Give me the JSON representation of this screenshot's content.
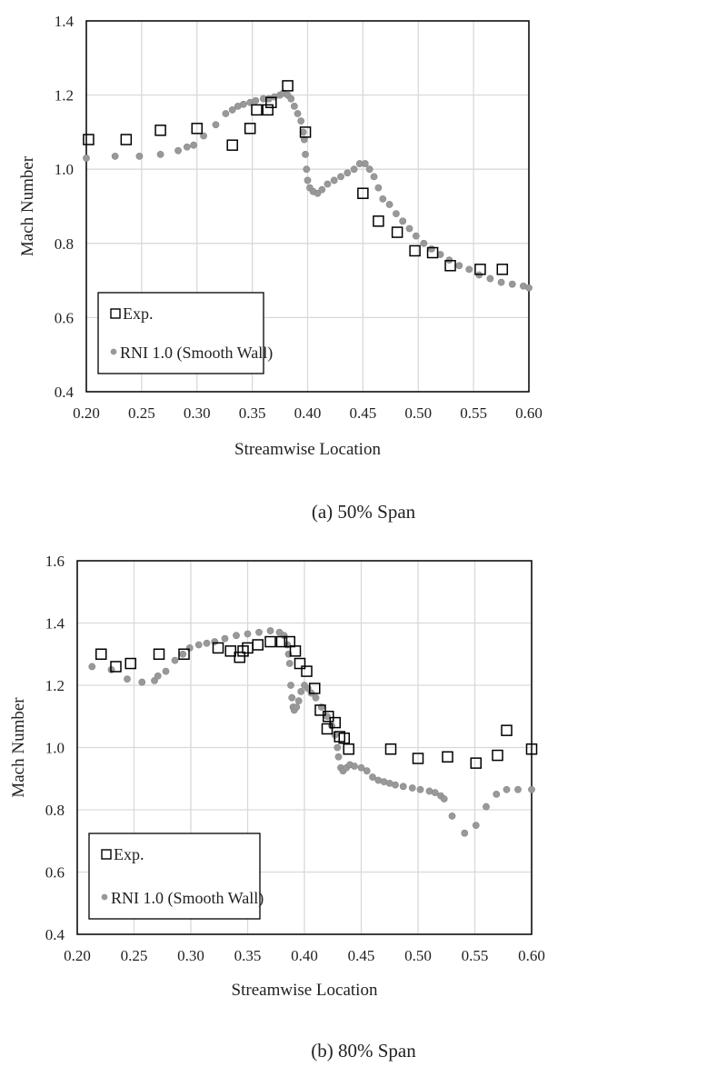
{
  "chart_data": [
    {
      "type": "scatter",
      "caption": "(a)  50%  Span",
      "xlabel": "Streamwise Location",
      "ylabel": "Mach Number",
      "xlim": [
        0.2,
        0.6
      ],
      "ylim": [
        0.4,
        1.4
      ],
      "xticks": [
        "0.20",
        "0.25",
        "0.30",
        "0.35",
        "0.40",
        "0.45",
        "0.50",
        "0.55",
        "0.60"
      ],
      "yticks": [
        "0.4",
        "0.6",
        "0.8",
        "1.0",
        "1.2",
        "1.4"
      ],
      "grid": true,
      "legend_position": "bottom-left",
      "series": [
        {
          "name": "Exp.",
          "marker": "open-square",
          "color": "#000000",
          "x": [
            0.202,
            0.236,
            0.267,
            0.3,
            0.332,
            0.348,
            0.354,
            0.364,
            0.367,
            0.382,
            0.398,
            0.45,
            0.464,
            0.481,
            0.497,
            0.513,
            0.529,
            0.556,
            0.576
          ],
          "y": [
            1.08,
            1.08,
            1.105,
            1.11,
            1.065,
            1.11,
            1.16,
            1.16,
            1.18,
            1.225,
            1.1,
            0.935,
            0.86,
            0.83,
            0.78,
            0.775,
            0.74,
            0.73,
            0.73
          ]
        },
        {
          "name": "RNI 1.0 (Smooth Wall)",
          "marker": "filled-circle",
          "color": "#999999",
          "x": [
            0.2,
            0.226,
            0.248,
            0.267,
            0.283,
            0.291,
            0.297,
            0.306,
            0.317,
            0.326,
            0.332,
            0.337,
            0.342,
            0.348,
            0.353,
            0.36,
            0.365,
            0.37,
            0.375,
            0.378,
            0.382,
            0.385,
            0.388,
            0.391,
            0.394,
            0.396,
            0.397,
            0.398,
            0.399,
            0.4,
            0.402,
            0.405,
            0.409,
            0.413,
            0.418,
            0.424,
            0.43,
            0.436,
            0.442,
            0.447,
            0.452,
            0.456,
            0.46,
            0.464,
            0.468,
            0.474,
            0.48,
            0.486,
            0.492,
            0.498,
            0.505,
            0.512,
            0.52,
            0.528,
            0.537,
            0.546,
            0.555,
            0.565,
            0.575,
            0.585,
            0.595,
            0.6
          ],
          "y": [
            1.03,
            1.035,
            1.035,
            1.04,
            1.05,
            1.06,
            1.065,
            1.09,
            1.12,
            1.15,
            1.16,
            1.17,
            1.175,
            1.18,
            1.185,
            1.19,
            1.19,
            1.195,
            1.2,
            1.205,
            1.2,
            1.19,
            1.17,
            1.15,
            1.13,
            1.1,
            1.08,
            1.04,
            1.0,
            0.97,
            0.95,
            0.94,
            0.935,
            0.945,
            0.96,
            0.97,
            0.98,
            0.99,
            1.0,
            1.015,
            1.015,
            1.0,
            0.98,
            0.95,
            0.92,
            0.905,
            0.88,
            0.86,
            0.84,
            0.82,
            0.8,
            0.785,
            0.77,
            0.755,
            0.74,
            0.73,
            0.715,
            0.705,
            0.695,
            0.69,
            0.685,
            0.68
          ]
        }
      ]
    },
    {
      "type": "scatter",
      "caption": "(b)  80%  Span",
      "xlabel": "Streamwise Location",
      "ylabel": "Mach Number",
      "xlim": [
        0.2,
        0.6
      ],
      "ylim": [
        0.4,
        1.6
      ],
      "xticks": [
        "0.20",
        "0.25",
        "0.30",
        "0.35",
        "0.40",
        "0.45",
        "0.50",
        "0.55",
        "0.60"
      ],
      "yticks": [
        "0.4",
        "0.6",
        "0.8",
        "1.0",
        "1.2",
        "1.4",
        "1.6"
      ],
      "grid": true,
      "legend_position": "bottom-left",
      "series": [
        {
          "name": "Exp.",
          "marker": "open-square",
          "color": "#000000",
          "x": [
            0.221,
            0.234,
            0.247,
            0.272,
            0.294,
            0.324,
            0.335,
            0.343,
            0.346,
            0.35,
            0.359,
            0.37,
            0.38,
            0.387,
            0.392,
            0.396,
            0.402,
            0.409,
            0.414,
            0.42,
            0.421,
            0.427,
            0.431,
            0.435,
            0.439,
            0.476,
            0.5,
            0.526,
            0.551,
            0.57,
            0.578,
            0.6
          ],
          "y": [
            1.3,
            1.26,
            1.27,
            1.3,
            1.3,
            1.32,
            1.31,
            1.29,
            1.31,
            1.32,
            1.33,
            1.34,
            1.34,
            1.34,
            1.31,
            1.27,
            1.245,
            1.19,
            1.12,
            1.06,
            1.1,
            1.08,
            1.035,
            1.03,
            0.995,
            0.995,
            0.965,
            0.97,
            0.95,
            0.975,
            1.055,
            0.995
          ]
        },
        {
          "name": "RNI 1.0 (Smooth Wall)",
          "marker": "filled-circle",
          "color": "#999999",
          "x": [
            0.213,
            0.23,
            0.244,
            0.257,
            0.268,
            0.271,
            0.278,
            0.286,
            0.293,
            0.299,
            0.307,
            0.314,
            0.321,
            0.33,
            0.34,
            0.35,
            0.36,
            0.37,
            0.378,
            0.382,
            0.385,
            0.386,
            0.387,
            0.388,
            0.389,
            0.39,
            0.391,
            0.393,
            0.395,
            0.397,
            0.4,
            0.403,
            0.406,
            0.41,
            0.415,
            0.42,
            0.424,
            0.427,
            0.429,
            0.43,
            0.432,
            0.434,
            0.437,
            0.44,
            0.444,
            0.45,
            0.455,
            0.46,
            0.465,
            0.47,
            0.475,
            0.48,
            0.487,
            0.495,
            0.502,
            0.51,
            0.515,
            0.52,
            0.523,
            0.53,
            0.541,
            0.551,
            0.56,
            0.569,
            0.578,
            0.588,
            0.6
          ],
          "y": [
            1.26,
            1.25,
            1.22,
            1.21,
            1.215,
            1.23,
            1.245,
            1.28,
            1.3,
            1.32,
            1.33,
            1.335,
            1.34,
            1.35,
            1.36,
            1.365,
            1.37,
            1.375,
            1.37,
            1.36,
            1.33,
            1.3,
            1.27,
            1.2,
            1.16,
            1.13,
            1.12,
            1.13,
            1.15,
            1.18,
            1.2,
            1.19,
            1.175,
            1.16,
            1.13,
            1.1,
            1.07,
            1.04,
            1.0,
            0.97,
            0.935,
            0.925,
            0.935,
            0.945,
            0.94,
            0.935,
            0.925,
            0.905,
            0.895,
            0.89,
            0.885,
            0.88,
            0.875,
            0.87,
            0.865,
            0.86,
            0.855,
            0.845,
            0.835,
            0.78,
            0.725,
            0.75,
            0.81,
            0.85,
            0.865,
            0.865,
            0.865
          ]
        }
      ]
    }
  ]
}
